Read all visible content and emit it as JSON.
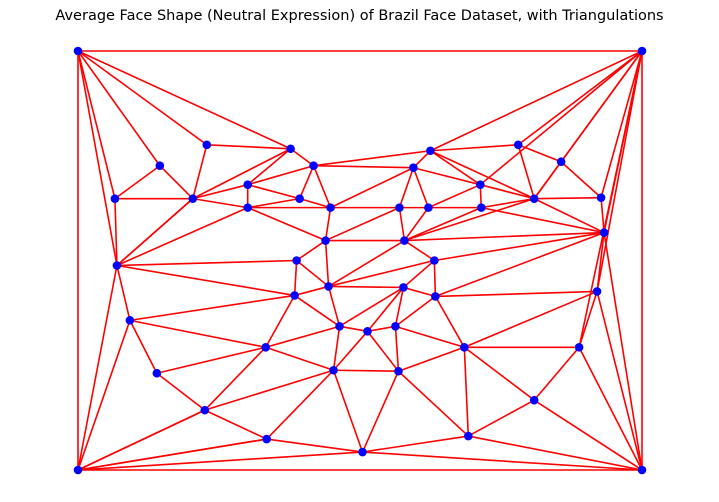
{
  "title": "Average Face Shape (Neutral Expression) of Brazil Face Dataset, with Triangulations",
  "colors": {
    "edge": "#ff0000",
    "point": "#0000ff",
    "background": "#ffffff"
  },
  "chart_data": {
    "type": "scatter",
    "x_range": [
      0,
      565
    ],
    "y_range": [
      0,
      420
    ],
    "y_axis": "inverted",
    "show_axes": false,
    "points": [
      [
        0,
        0
      ],
      [
        565,
        0
      ],
      [
        0,
        420
      ],
      [
        565,
        420
      ],
      [
        129,
        94
      ],
      [
        213,
        98
      ],
      [
        353,
        100
      ],
      [
        441,
        94
      ],
      [
        82,
        115
      ],
      [
        236,
        115
      ],
      [
        336,
        117
      ],
      [
        484,
        111
      ],
      [
        170,
        134
      ],
      [
        403,
        134
      ],
      [
        37,
        148
      ],
      [
        115,
        148
      ],
      [
        222,
        148
      ],
      [
        457,
        148
      ],
      [
        524,
        147
      ],
      [
        170,
        157
      ],
      [
        253,
        157
      ],
      [
        322,
        157
      ],
      [
        351,
        157
      ],
      [
        404,
        157
      ],
      [
        527,
        182
      ],
      [
        248,
        190
      ],
      [
        327,
        190
      ],
      [
        39,
        215
      ],
      [
        219,
        210
      ],
      [
        357,
        210
      ],
      [
        251,
        236
      ],
      [
        326,
        237
      ],
      [
        520,
        241
      ],
      [
        217,
        245
      ],
      [
        358,
        246
      ],
      [
        52,
        270
      ],
      [
        262,
        276
      ],
      [
        290,
        281
      ],
      [
        318,
        276
      ],
      [
        188,
        297
      ],
      [
        387,
        297
      ],
      [
        502,
        297
      ],
      [
        79,
        323
      ],
      [
        256,
        320
      ],
      [
        321,
        321
      ],
      [
        127,
        360
      ],
      [
        457,
        350
      ],
      [
        189,
        389
      ],
      [
        391,
        386
      ],
      [
        285,
        402
      ]
    ],
    "edges": [
      [
        0,
        1
      ],
      [
        0,
        2
      ],
      [
        1,
        3
      ],
      [
        2,
        3
      ],
      [
        0,
        4
      ],
      [
        0,
        5
      ],
      [
        0,
        8
      ],
      [
        0,
        14
      ],
      [
        0,
        27
      ],
      [
        1,
        6
      ],
      [
        1,
        7
      ],
      [
        1,
        11
      ],
      [
        1,
        13
      ],
      [
        1,
        17
      ],
      [
        1,
        18
      ],
      [
        1,
        24
      ],
      [
        1,
        32
      ],
      [
        1,
        41
      ],
      [
        2,
        27
      ],
      [
        2,
        35
      ],
      [
        2,
        45
      ],
      [
        2,
        47
      ],
      [
        2,
        49
      ],
      [
        3,
        24
      ],
      [
        3,
        32
      ],
      [
        3,
        41
      ],
      [
        3,
        46
      ],
      [
        3,
        48
      ],
      [
        3,
        49
      ],
      [
        4,
        5
      ],
      [
        4,
        15
      ],
      [
        8,
        14
      ],
      [
        8,
        15
      ],
      [
        14,
        15
      ],
      [
        14,
        27
      ],
      [
        15,
        27
      ],
      [
        5,
        12
      ],
      [
        5,
        15
      ],
      [
        5,
        9
      ],
      [
        15,
        12
      ],
      [
        15,
        19
      ],
      [
        15,
        27
      ],
      [
        9,
        10
      ],
      [
        9,
        6
      ],
      [
        12,
        9
      ],
      [
        12,
        19
      ],
      [
        12,
        16
      ],
      [
        9,
        16
      ],
      [
        9,
        20
      ],
      [
        16,
        19
      ],
      [
        16,
        20
      ],
      [
        19,
        20
      ],
      [
        19,
        25
      ],
      [
        19,
        27
      ],
      [
        20,
        21
      ],
      [
        6,
        10
      ],
      [
        6,
        7
      ],
      [
        6,
        13
      ],
      [
        6,
        17
      ],
      [
        10,
        13
      ],
      [
        10,
        22
      ],
      [
        10,
        21
      ],
      [
        10,
        20
      ],
      [
        13,
        22
      ],
      [
        13,
        23
      ],
      [
        13,
        17
      ],
      [
        7,
        11
      ],
      [
        7,
        17
      ],
      [
        11,
        17
      ],
      [
        11,
        18
      ],
      [
        17,
        18
      ],
      [
        17,
        23
      ],
      [
        17,
        24
      ],
      [
        17,
        26
      ],
      [
        18,
        24
      ],
      [
        22,
        23
      ],
      [
        22,
        26
      ],
      [
        23,
        26
      ],
      [
        23,
        24
      ],
      [
        21,
        22
      ],
      [
        21,
        26
      ],
      [
        21,
        25
      ],
      [
        20,
        25
      ],
      [
        25,
        26
      ],
      [
        25,
        28
      ],
      [
        25,
        30
      ],
      [
        26,
        29
      ],
      [
        26,
        24
      ],
      [
        26,
        30
      ],
      [
        29,
        24
      ],
      [
        27,
        28
      ],
      [
        27,
        33
      ],
      [
        27,
        35
      ],
      [
        28,
        30
      ],
      [
        28,
        33
      ],
      [
        29,
        30
      ],
      [
        29,
        31
      ],
      [
        29,
        34
      ],
      [
        24,
        34
      ],
      [
        24,
        32
      ],
      [
        30,
        31
      ],
      [
        30,
        36
      ],
      [
        30,
        33
      ],
      [
        31,
        34
      ],
      [
        31,
        38
      ],
      [
        31,
        37
      ],
      [
        31,
        36
      ],
      [
        32,
        34
      ],
      [
        32,
        40
      ],
      [
        32,
        41
      ],
      [
        34,
        40
      ],
      [
        34,
        38
      ],
      [
        33,
        35
      ],
      [
        33,
        36
      ],
      [
        33,
        39
      ],
      [
        35,
        39
      ],
      [
        35,
        42
      ],
      [
        36,
        37
      ],
      [
        36,
        43
      ],
      [
        36,
        39
      ],
      [
        37,
        38
      ],
      [
        37,
        43
      ],
      [
        37,
        44
      ],
      [
        38,
        40
      ],
      [
        38,
        44
      ],
      [
        39,
        42
      ],
      [
        39,
        43
      ],
      [
        39,
        45
      ],
      [
        40,
        41
      ],
      [
        40,
        46
      ],
      [
        40,
        44
      ],
      [
        40,
        48
      ],
      [
        41,
        46
      ],
      [
        42,
        45
      ],
      [
        43,
        44
      ],
      [
        43,
        45
      ],
      [
        43,
        47
      ],
      [
        43,
        49
      ],
      [
        44,
        48
      ],
      [
        44,
        49
      ],
      [
        45,
        47
      ],
      [
        46,
        48
      ],
      [
        47,
        49
      ],
      [
        48,
        49
      ],
      [
        45,
        2
      ],
      [
        47,
        2
      ]
    ]
  }
}
